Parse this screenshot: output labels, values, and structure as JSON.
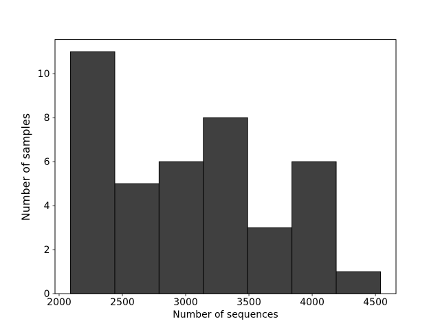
{
  "figure": {
    "background_color": "#ffffff"
  },
  "chart_data": {
    "type": "bar",
    "subtype": "histogram",
    "title": "",
    "xlabel": "Number of sequences",
    "ylabel": "Number of samples",
    "bin_edges": [
      2090,
      2440,
      2790,
      3140,
      3490,
      3840,
      4190,
      4540
    ],
    "counts": [
      11,
      5,
      6,
      8,
      3,
      6,
      1
    ],
    "x_tick_labels": [
      "2000",
      "2500",
      "3000",
      "3500",
      "4000",
      "4500"
    ],
    "x_tick_values": [
      2000,
      2500,
      3000,
      3500,
      4000,
      4500
    ],
    "y_tick_labels": [
      "0",
      "2",
      "4",
      "6",
      "8",
      "10"
    ],
    "y_tick_values": [
      0,
      2,
      4,
      6,
      8,
      10
    ],
    "xlim": [
      1967.5,
      4662.5
    ],
    "ylim": [
      0,
      11.55
    ],
    "grid": false,
    "legend": "none",
    "bar_fill_color": "#404040",
    "bar_edge_color": "#000000",
    "spine_color": "#000000",
    "text_color": "#000000"
  }
}
